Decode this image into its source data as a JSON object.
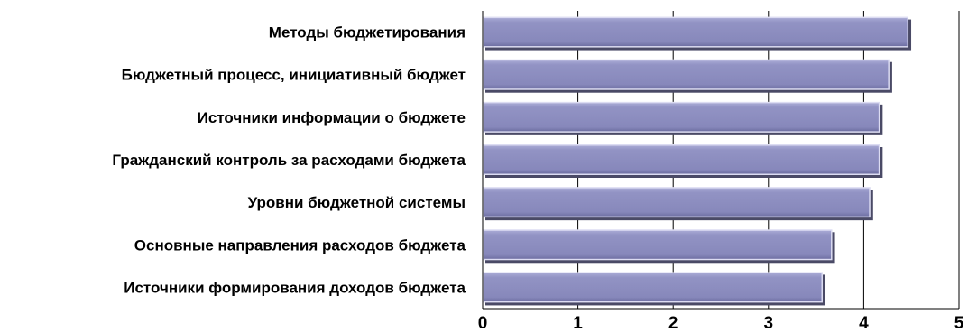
{
  "chart_data": {
    "type": "bar",
    "orientation": "horizontal",
    "categories": [
      "Методы бюджетирования",
      "Бюджетный процесс, инициативный бюджет",
      "Источники информации о бюджете",
      "Гражданский контроль за расходами бюджета",
      "Уровни бюджетной системы",
      "Основные направления расходов бюджета",
      "Источники формирования доходов бюджета"
    ],
    "values": [
      4.47,
      4.27,
      4.17,
      4.17,
      4.07,
      3.67,
      3.57
    ],
    "xlim": [
      0,
      5
    ],
    "xticks": [
      "0",
      "1",
      "2",
      "3",
      "4",
      "5"
    ],
    "grid": "vertical",
    "bar_color": "#8e8fbf",
    "title": "",
    "xlabel": "",
    "ylabel": ""
  }
}
